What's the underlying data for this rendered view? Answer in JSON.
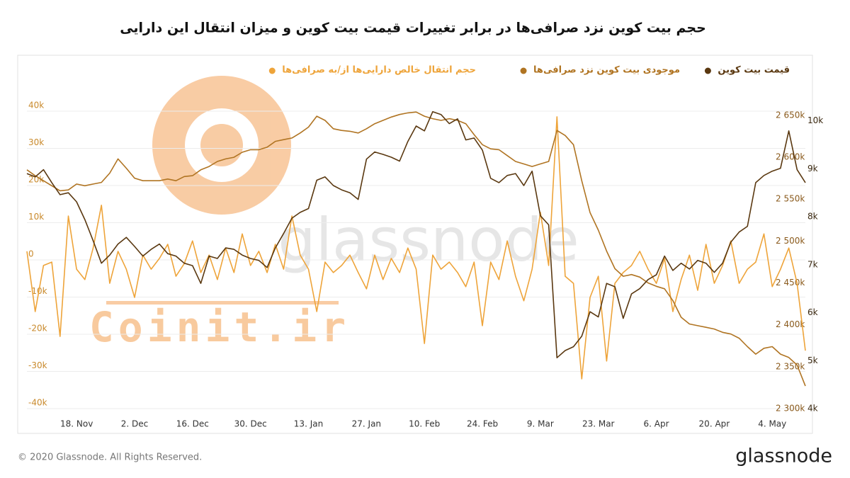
{
  "chart_data": {
    "type": "line",
    "title": "حجم بیت کوین نزد صرافی‌ها در برابر تغییرات قیمت بیت کوین و میزان انتقال این دارایی",
    "categories": [
      null,
      null,
      null,
      null,
      null,
      null,
      "18. Nov",
      null,
      null,
      null,
      null,
      null,
      null,
      "2. Dec",
      null,
      null,
      null,
      null,
      null,
      null,
      "16. Dec",
      null,
      null,
      null,
      null,
      null,
      null,
      "30. Dec",
      null,
      null,
      null,
      null,
      null,
      null,
      "13. Jan",
      null,
      null,
      null,
      null,
      null,
      null,
      "27. Jan",
      null,
      null,
      null,
      null,
      null,
      null,
      "10. Feb",
      null,
      null,
      null,
      null,
      null,
      null,
      "24. Feb",
      null,
      null,
      null,
      null,
      null,
      null,
      "9. Mar",
      null,
      null,
      null,
      null,
      null,
      null,
      "23. Mar",
      null,
      null,
      null,
      null,
      null,
      null,
      "6. Apr",
      null,
      null,
      null,
      null,
      null,
      null,
      "20. Apr",
      null,
      null,
      null,
      null,
      null,
      null,
      "4. May",
      null,
      null,
      null,
      null
    ],
    "ylim": [
      -40000,
      40000
    ],
    "yticks": [
      {
        "value": 40000,
        "label": "40k"
      },
      {
        "value": 30000,
        "label": "30k"
      },
      {
        "value": 20000,
        "label": "20k"
      },
      {
        "value": 10000,
        "label": "10k"
      },
      0,
      {
        "value": -10000,
        "label": "-10k"
      },
      {
        "value": -20000,
        "label": "-20k"
      },
      {
        "value": -30000,
        "label": "-30k"
      },
      {
        "value": -40000,
        "label": "-40k"
      }
    ],
    "y2lim": [
      2300000,
      2655000
    ],
    "y2ticks": [
      {
        "value": 2650000,
        "label": "2 650k"
      },
      {
        "value": 2600000,
        "label": "2 600k"
      },
      {
        "value": 2550000,
        "label": "2 550k"
      },
      {
        "value": 2500000,
        "label": "2 500k"
      },
      {
        "value": 2450000,
        "label": "2 450k"
      },
      {
        "value": 2400000,
        "label": "2 400k"
      },
      {
        "value": 2350000,
        "label": "2 350k"
      },
      {
        "value": 2300000,
        "label": "2 300k"
      }
    ],
    "y3lim": [
      4000,
      10200
    ],
    "y3ticks": [
      {
        "value": 10000,
        "label": "10k"
      },
      {
        "value": 9000,
        "label": "9k"
      },
      {
        "value": 8000,
        "label": "8k"
      },
      {
        "value": 7000,
        "label": "7k"
      },
      {
        "value": 6000,
        "label": "6k"
      },
      {
        "value": 5000,
        "label": "5k"
      },
      {
        "value": 4000,
        "label": "4k"
      }
    ],
    "grid": true,
    "series": [
      {
        "name": "حجم انتقال خالص دارایی‌ها از/به صرافی‌ها",
        "color": "#eea43a",
        "axis": "y",
        "values": [
          2300,
          -13900,
          -1500,
          -600,
          -20600,
          11800,
          -2500,
          -5300,
          3200,
          14700,
          -6300,
          2300,
          -2500,
          -10100,
          1300,
          -2500,
          400,
          4200,
          -4400,
          -1000,
          5100,
          -3400,
          1300,
          -5300,
          3200,
          -3400,
          7000,
          -1500,
          2300,
          -3400,
          4200,
          -2500,
          11800,
          1300,
          -2500,
          -13900,
          -600,
          -3400,
          -1500,
          1300,
          -3400,
          -7800,
          1300,
          -5300,
          400,
          -3400,
          3200,
          -2500,
          -22500,
          1300,
          -2500,
          -600,
          -3400,
          -7200,
          -600,
          -17700,
          -600,
          -5300,
          5100,
          -4400,
          -11000,
          -2500,
          12800,
          -1500,
          38500,
          -4400,
          -6300,
          -32000,
          -10100,
          -4400,
          -27200,
          -6300,
          -3400,
          -1500,
          2300,
          -2500,
          -6300,
          400,
          -13900,
          -5300,
          1300,
          -8200,
          4200,
          -6300,
          -1500,
          5100,
          -6300,
          -2500,
          -600,
          7000,
          -7200,
          -2500,
          3200,
          -6300,
          -24400
        ]
      },
      {
        "name": "موجودی بیت کوین نزد صرافی‌ها",
        "color": "#b07422",
        "axis": "y2",
        "values": [
          2585000,
          2578000,
          2572000,
          2566000,
          2560000,
          2561000,
          2568000,
          2566000,
          2568000,
          2570000,
          2581000,
          2598000,
          2587000,
          2575000,
          2572000,
          2572000,
          2572000,
          2574000,
          2572000,
          2577000,
          2578000,
          2585000,
          2589000,
          2595000,
          2598000,
          2600000,
          2606000,
          2609000,
          2609000,
          2612000,
          2619000,
          2621000,
          2623000,
          2629000,
          2636000,
          2649000,
          2644000,
          2634000,
          2632000,
          2631000,
          2629000,
          2634000,
          2640000,
          2644000,
          2648000,
          2651000,
          2653000,
          2654000,
          2649000,
          2646000,
          2644000,
          2646000,
          2644000,
          2640000,
          2627000,
          2615000,
          2610000,
          2609000,
          2602000,
          2595000,
          2592000,
          2589000,
          2592000,
          2595000,
          2632000,
          2626000,
          2615000,
          2572000,
          2534000,
          2513000,
          2488000,
          2467000,
          2458000,
          2460000,
          2457000,
          2450000,
          2446000,
          2443000,
          2429000,
          2409000,
          2401000,
          2399000,
          2397000,
          2395000,
          2391000,
          2389000,
          2384000,
          2374000,
          2365000,
          2372000,
          2374000,
          2365000,
          2361000,
          2352000,
          2327000
        ]
      },
      {
        "name": "قیمت بیت کوین",
        "color": "#5a3810",
        "axis": "y3",
        "values": [
          8900,
          8830,
          8980,
          8710,
          8460,
          8500,
          8310,
          7940,
          7500,
          7030,
          7200,
          7430,
          7570,
          7380,
          7180,
          7320,
          7430,
          7230,
          7180,
          7030,
          6980,
          6610,
          7180,
          7130,
          7350,
          7320,
          7200,
          7130,
          7090,
          6940,
          7350,
          7650,
          7970,
          8090,
          8170,
          8760,
          8830,
          8650,
          8560,
          8500,
          8360,
          9200,
          9350,
          9300,
          9240,
          9160,
          9570,
          9890,
          9790,
          10190,
          10130,
          9940,
          10040,
          9600,
          9640,
          9390,
          8800,
          8710,
          8860,
          8900,
          8650,
          8950,
          8020,
          7830,
          5060,
          5210,
          5290,
          5510,
          6020,
          5910,
          6610,
          6540,
          5880,
          6390,
          6500,
          6690,
          6790,
          7180,
          6880,
          7030,
          6910,
          7090,
          7030,
          6840,
          7030,
          7470,
          7680,
          7800,
          8710,
          8860,
          8950,
          9010,
          9790,
          8980,
          8710
        ]
      }
    ]
  },
  "watermarks": [
    "glassnode",
    "Coinit.ir"
  ],
  "footer": {
    "copyright": "© 2020 Glassnode. All Rights Reserved.",
    "brand": "glassnode"
  }
}
